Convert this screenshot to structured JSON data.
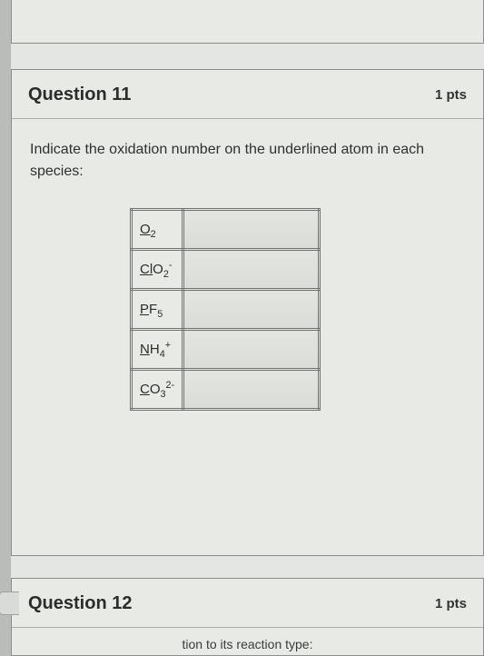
{
  "question11": {
    "title": "Question 11",
    "points": "1 pts",
    "prompt": "Indicate the oxidation number on the underlined atom in each species:",
    "rows": [
      {
        "underlined": "O",
        "rest_sub": "2",
        "rest_sup": ""
      },
      {
        "underlined": "Cl",
        "rest": "O",
        "rest_sub": "2",
        "rest_sup": "-"
      },
      {
        "underlined": "P",
        "rest": "F",
        "rest_sub": "5",
        "rest_sup": ""
      },
      {
        "underlined": "N",
        "rest": "H",
        "rest_sub": "4",
        "rest_sup": "+"
      },
      {
        "underlined": "C",
        "rest": "O",
        "rest_sub": "3",
        "rest_sup": "2-"
      }
    ]
  },
  "question12": {
    "title": "Question 12",
    "points": "1 pts",
    "partial_text": "tion to its reaction type:"
  }
}
